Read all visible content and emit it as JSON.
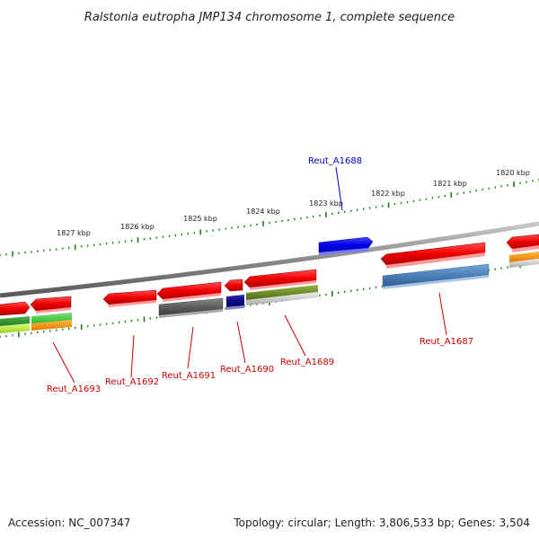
{
  "title": "Ralstonia eutropha JMP134 chromosome 1, complete sequence",
  "footer": {
    "accession": "Accession: NC_007347",
    "summary": "Topology: circular; Length: 3,806,533 bp; Genes: 3,504"
  },
  "colors": {
    "backbone": "#8a8a8a",
    "tick": "#1e7a1e",
    "label_red": "#cc0000",
    "label_blue": "#0000cc"
  },
  "tick_labels": [
    "1827 kbp",
    "1826 kbp",
    "1825 kbp",
    "1824 kbp",
    "1823 kbp",
    "1822 kbp",
    "1821 kbp",
    "1820 kbp"
  ],
  "gene_labels": {
    "reut_a1688": "Reut_A1688",
    "reut_a1687": "Reut_A1687",
    "reut_a1689": "Reut_A1689",
    "reut_a1690": "Reut_A1690",
    "reut_a1691": "Reut_A1691",
    "reut_a1692": "Reut_A1692",
    "reut_a1693": "Reut_A1693"
  }
}
